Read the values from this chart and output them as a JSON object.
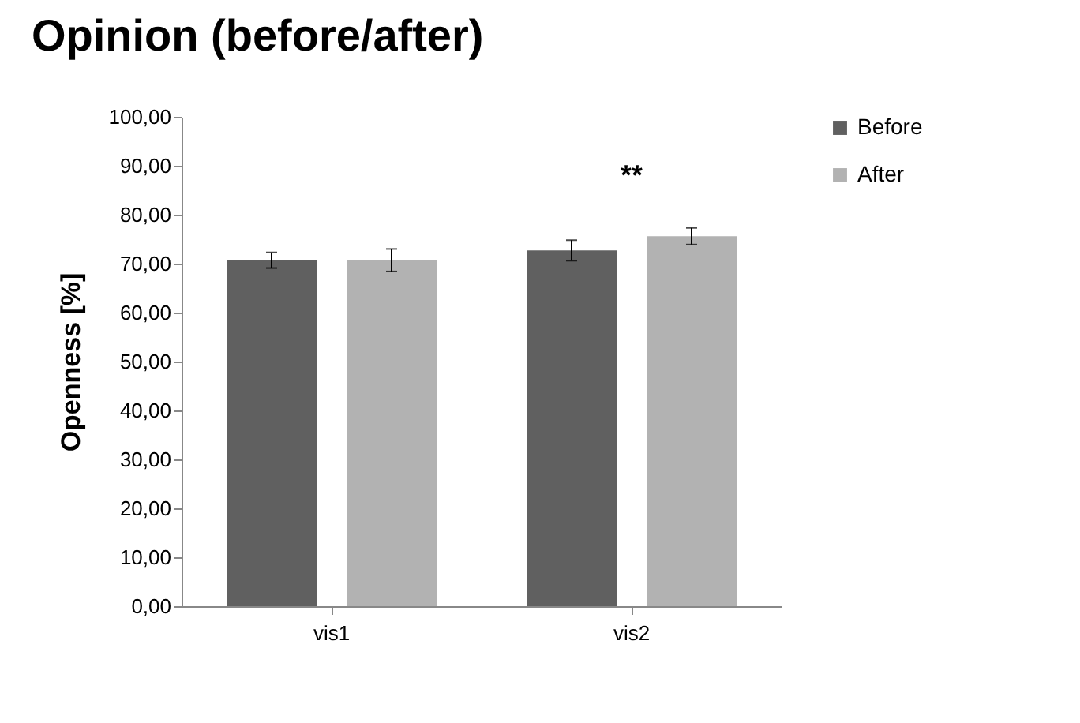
{
  "chart_data": {
    "type": "bar",
    "title": "Opinion (before/after)",
    "ylabel": "Openness [%]",
    "categories": [
      "vis1",
      "vis2"
    ],
    "series": [
      {
        "name": "Before",
        "color": "#606060",
        "values": [
          70.7,
          72.7
        ],
        "errors": [
          1.6,
          2.1
        ]
      },
      {
        "name": "After",
        "color": "#b2b2b2",
        "values": [
          70.7,
          75.6
        ],
        "errors": [
          2.3,
          1.7
        ]
      }
    ],
    "ylim": [
      0,
      100
    ],
    "yticks": [
      {
        "value": 0,
        "label": "0,00"
      },
      {
        "value": 10,
        "label": "10,00"
      },
      {
        "value": 20,
        "label": "20,00"
      },
      {
        "value": 30,
        "label": "30,00"
      },
      {
        "value": 40,
        "label": "40,00"
      },
      {
        "value": 50,
        "label": "50,00"
      },
      {
        "value": 60,
        "label": "60,00"
      },
      {
        "value": 70,
        "label": "70,00"
      },
      {
        "value": 80,
        "label": "80,00"
      },
      {
        "value": 90,
        "label": "90,00"
      },
      {
        "value": 100,
        "label": "100,00"
      }
    ],
    "annotations": [
      "**"
    ],
    "grid": false,
    "legend": "right"
  }
}
